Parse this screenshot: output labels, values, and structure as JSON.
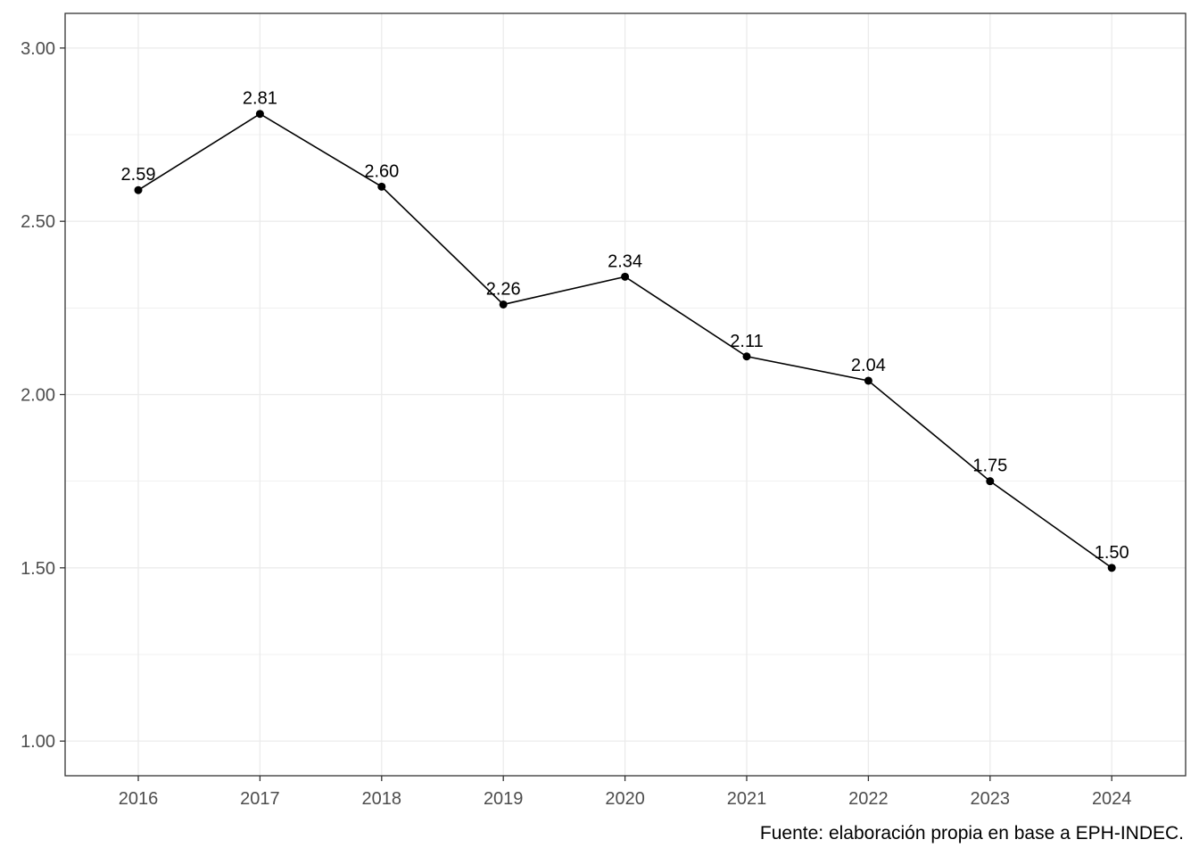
{
  "chart_data": {
    "type": "line",
    "x": [
      "2016",
      "2017",
      "2018",
      "2019",
      "2020",
      "2021",
      "2022",
      "2023",
      "2024"
    ],
    "series": [
      {
        "values": [
          2.59,
          2.81,
          2.6,
          2.26,
          2.34,
          2.11,
          2.04,
          1.75,
          1.5
        ]
      }
    ],
    "data_labels": [
      "2.59",
      "2.81",
      "2.60",
      "2.26",
      "2.34",
      "2.11",
      "2.04",
      "1.75",
      "1.50"
    ],
    "y_ticks": [
      1.0,
      1.5,
      2.0,
      2.5,
      3.0
    ],
    "y_tick_labels": [
      "1.00",
      "1.50",
      "2.00",
      "2.50",
      "3.00"
    ],
    "ylim": [
      0.9,
      3.1
    ],
    "grid": true,
    "legend": "none",
    "colors": {
      "line": "#000000",
      "grid": "#ebebeb",
      "panel_border": "#333333",
      "tick_text": "#4d4d4d"
    },
    "caption": "Fuente: elaboración propia en base a EPH-INDEC."
  }
}
